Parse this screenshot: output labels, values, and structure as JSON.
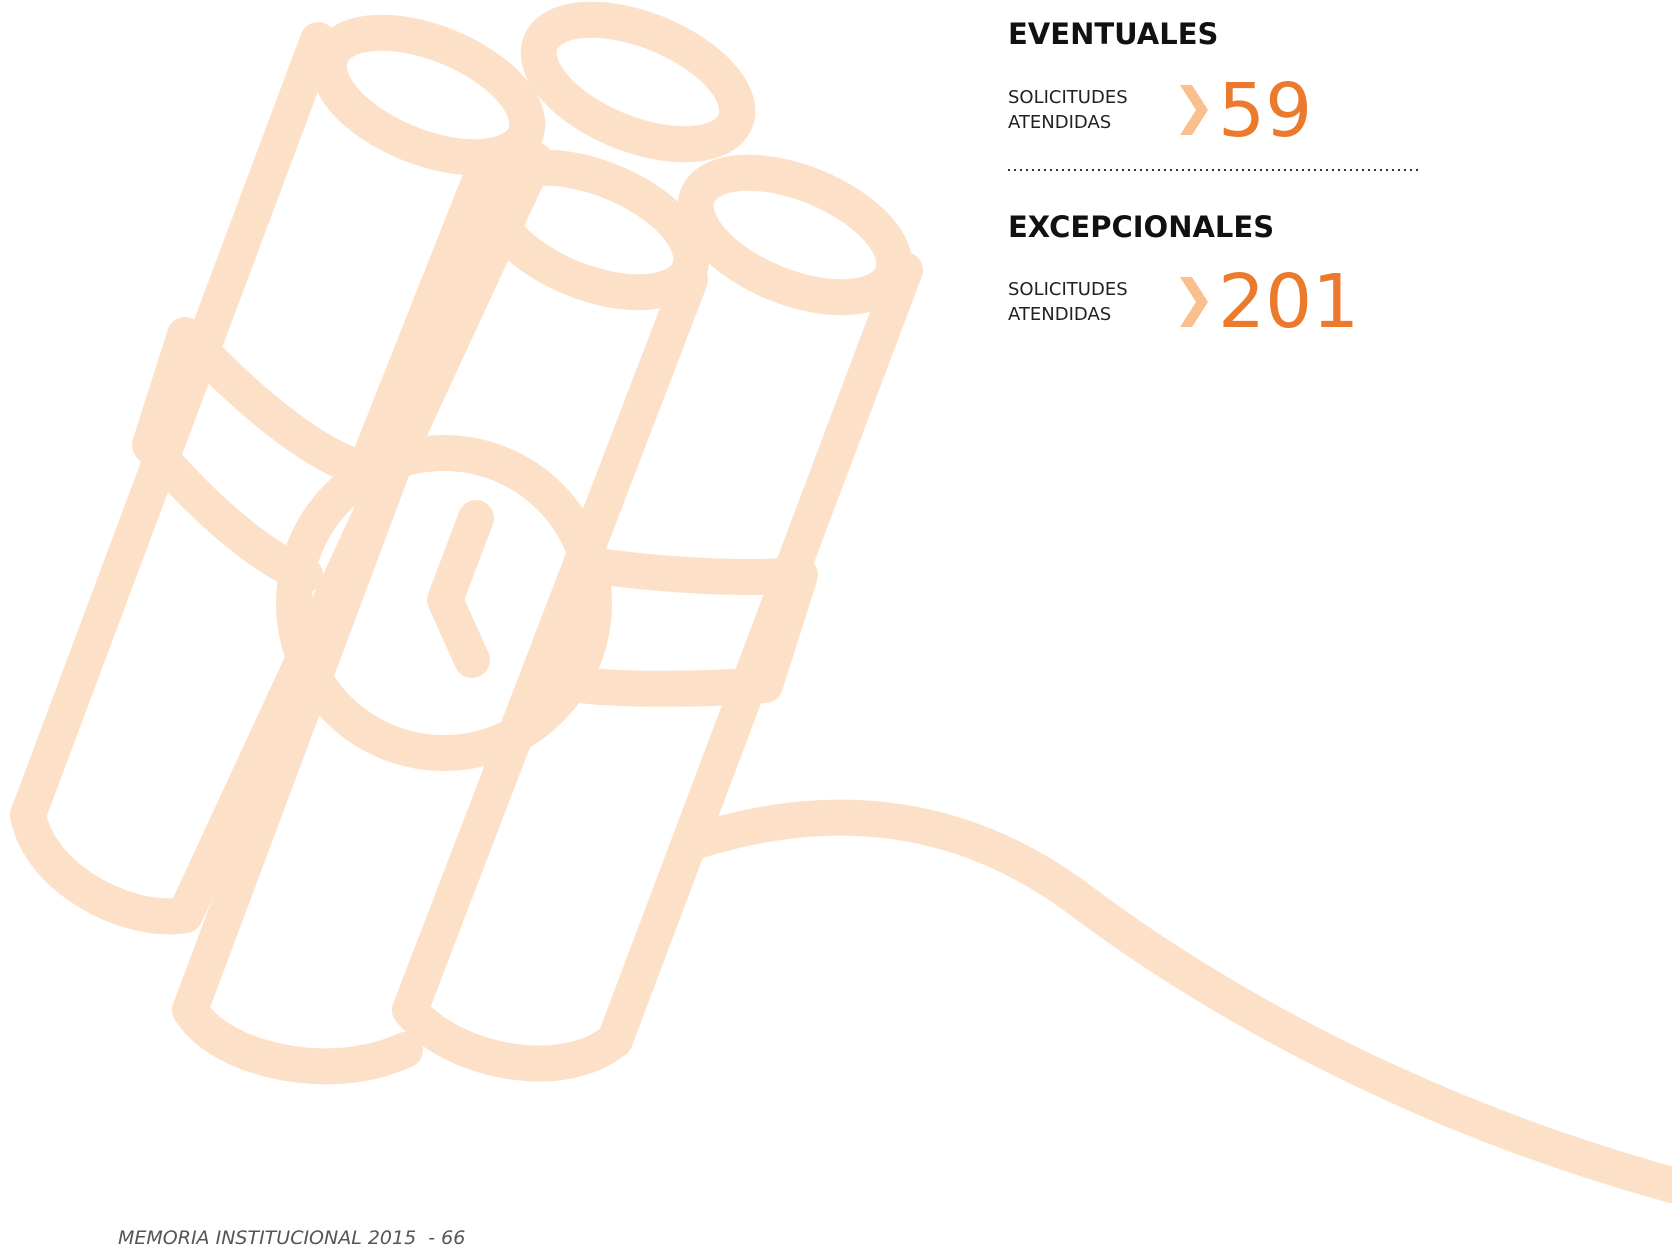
{
  "sections": [
    {
      "title": "EVENTUALES",
      "label": [
        "SOLICITUDES",
        "ATENDIDAS"
      ],
      "value": 59
    },
    {
      "title": "EXCEPCIONALES",
      "label": [
        "SOLICITUDES",
        "ATENDIDAS"
      ],
      "value": 201
    }
  ],
  "footer": "MEMORIA INSTITUCIONAL 2015  - 66"
}
